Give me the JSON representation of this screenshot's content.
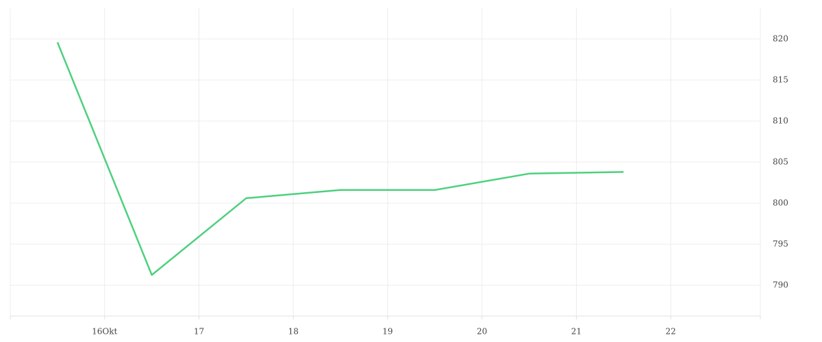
{
  "chart_data": {
    "type": "line",
    "x": [
      15.5,
      16.5,
      17.5,
      18.5,
      19.5,
      20.5,
      21.5
    ],
    "series": [
      {
        "color": "#4cd07d",
        "values": [
          819.6,
          791.25,
          800.6,
          801.6,
          801.6,
          803.6,
          803.8
        ]
      }
    ],
    "xlim": [
      15,
      22.95
    ],
    "xticks": [
      {
        "value": 16,
        "label": "16Okt"
      },
      17,
      18,
      19,
      20,
      21,
      22
    ],
    "ylim": [
      786.25,
      823.75
    ],
    "yticks": [
      790,
      795,
      800,
      805,
      810,
      815,
      820
    ],
    "grid": true
  }
}
